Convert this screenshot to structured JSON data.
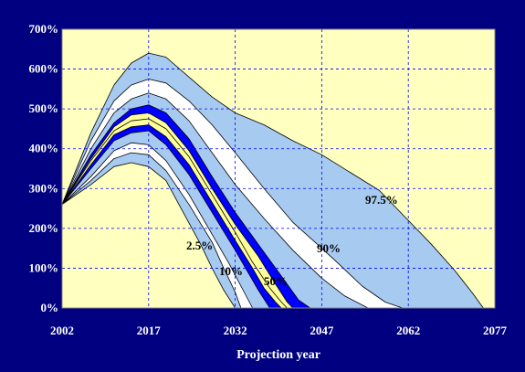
{
  "chart_data": {
    "type": "area",
    "title": "",
    "xlabel": "Projection year",
    "ylabel": "",
    "x_ticks": [
      "2002",
      "2017",
      "2032",
      "2047",
      "2062",
      "2077"
    ],
    "y_ticks": [
      "0%",
      "100%",
      "200%",
      "300%",
      "400%",
      "500%",
      "600%",
      "700%"
    ],
    "xlim": [
      2002,
      2077
    ],
    "ylim": [
      0,
      700
    ],
    "grid": true,
    "band_labels": [
      "97.5%",
      "90%",
      "50%",
      "10%",
      "2.5%"
    ],
    "series": [
      {
        "name": "97.5%",
        "x": [
          2002,
          2007,
          2011,
          2014,
          2017,
          2020,
          2024,
          2028,
          2032,
          2037,
          2042,
          2047,
          2052,
          2057,
          2062,
          2066,
          2070,
          2073,
          2075
        ],
        "values": [
          260,
          440,
          560,
          615,
          640,
          630,
          580,
          530,
          490,
          460,
          420,
          385,
          340,
          295,
          220,
          160,
          95,
          40,
          0
        ]
      },
      {
        "name": "",
        "x": [
          2002,
          2007,
          2011,
          2014,
          2017,
          2020,
          2024,
          2028,
          2032,
          2037,
          2042,
          2047,
          2050,
          2054,
          2058,
          2061
        ],
        "values": [
          260,
          420,
          520,
          560,
          575,
          565,
          520,
          460,
          390,
          300,
          215,
          150,
          110,
          55,
          15,
          0
        ]
      },
      {
        "name": "90%",
        "x": [
          2002,
          2007,
          2011,
          2014,
          2017,
          2020,
          2024,
          2028,
          2032,
          2037,
          2042,
          2047,
          2051,
          2055
        ],
        "values": [
          260,
          400,
          490,
          525,
          540,
          525,
          470,
          390,
          310,
          225,
          145,
          75,
          30,
          0
        ]
      },
      {
        "name": "",
        "x": [
          2002,
          2007,
          2011,
          2014,
          2017,
          2020,
          2024,
          2028,
          2032,
          2036,
          2040,
          2043,
          2045
        ],
        "values": [
          260,
          385,
          465,
          500,
          510,
          490,
          425,
          330,
          240,
          160,
          80,
          20,
          0
        ]
      },
      {
        "name": "",
        "x": [
          2002,
          2007,
          2011,
          2014,
          2017,
          2020,
          2024,
          2028,
          2032,
          2036,
          2039,
          2041,
          2042
        ],
        "values": [
          260,
          375,
          455,
          485,
          490,
          465,
          395,
          300,
          210,
          130,
          60,
          15,
          0
        ]
      },
      {
        "name": "50%",
        "x": [
          2002,
          2007,
          2011,
          2014,
          2017,
          2020,
          2024,
          2028,
          2032,
          2035,
          2038,
          2040,
          2041
        ],
        "values": [
          260,
          370,
          445,
          470,
          475,
          450,
          380,
          285,
          190,
          115,
          50,
          15,
          0
        ]
      },
      {
        "name": "",
        "x": [
          2002,
          2007,
          2011,
          2014,
          2017,
          2020,
          2024,
          2028,
          2032,
          2035,
          2037,
          2039,
          2040
        ],
        "values": [
          260,
          360,
          435,
          455,
          460,
          430,
          360,
          265,
          170,
          100,
          50,
          15,
          0
        ]
      },
      {
        "name": "",
        "x": [
          2002,
          2007,
          2011,
          2014,
          2017,
          2020,
          2024,
          2028,
          2032,
          2034,
          2036,
          2038
        ],
        "values": [
          260,
          350,
          420,
          440,
          445,
          410,
          335,
          240,
          145,
          95,
          45,
          0
        ]
      },
      {
        "name": "10%",
        "x": [
          2002,
          2007,
          2011,
          2014,
          2017,
          2020,
          2024,
          2028,
          2031,
          2033,
          2035
        ],
        "values": [
          260,
          330,
          395,
          415,
          410,
          370,
          285,
          185,
          110,
          55,
          0
        ]
      },
      {
        "name": "",
        "x": [
          2002,
          2007,
          2011,
          2014,
          2017,
          2020,
          2024,
          2028,
          2030,
          2032,
          2033
        ],
        "values": [
          260,
          320,
          375,
          390,
          385,
          345,
          260,
          165,
          100,
          40,
          0
        ]
      },
      {
        "name": "2.5%",
        "x": [
          2002,
          2007,
          2011,
          2014,
          2017,
          2020,
          2023,
          2026,
          2028,
          2030,
          2032
        ],
        "values": [
          260,
          310,
          355,
          365,
          355,
          320,
          240,
          160,
          100,
          45,
          0
        ]
      }
    ],
    "band_fills": [
      "#a6caf0",
      "#ffffff",
      "#a6caf0",
      "#0000ff",
      "#ffff99",
      "#ffff99",
      "#0000ff",
      "#a6caf0",
      "#ffffff",
      "#a6caf0",
      "#ffffc0"
    ],
    "colors": {
      "outer_background": "#000080",
      "plot_background": "#ffffc0",
      "grid": "#0000ff",
      "axis_text": "#ffffff"
    }
  }
}
